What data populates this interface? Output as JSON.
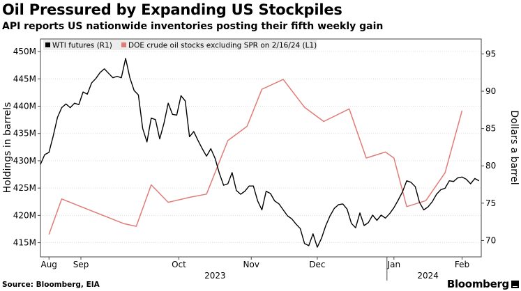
{
  "title": "Oil Pressured by Expanding US Stockpiles",
  "subtitle": "API reports US nationwide inventories posting their fifth weekly gain",
  "footer": {
    "source": "Source: Bloomberg, EIA",
    "brand": "Bloomberg"
  },
  "colors": {
    "wti": "#000000",
    "doe": "#e07c77",
    "grid": "#dcdcdc",
    "legend_bg": "#ececec",
    "axis": "#444444"
  },
  "chart_data": {
    "type": "line",
    "title": "Oil Pressured by Expanding US Stockpiles",
    "legend": [
      "WTI futures (R1)",
      "DOE crude oil stocks excluding SPR on 2/16/24 (L1)"
    ],
    "legend_position": "top-left",
    "x_domain": [
      0,
      207
    ],
    "xaxis": {
      "month_ticks": [
        {
          "label": "Aug",
          "x": 4
        },
        {
          "label": "Sep",
          "x": 19
        },
        {
          "label": "Oct",
          "x": 65
        },
        {
          "label": "Nov",
          "x": 99
        },
        {
          "label": "Dec",
          "x": 130
        },
        {
          "label": "Jan",
          "x": 166
        },
        {
          "label": "Feb",
          "x": 198
        }
      ],
      "year_labels": [
        {
          "label": "2023",
          "x": 82
        },
        {
          "label": "2024",
          "x": 182
        }
      ]
    },
    "left_axis": {
      "label": "Holdings in barrels",
      "ticks": [
        "415M",
        "420M",
        "425M",
        "430M",
        "435M",
        "440M",
        "445M",
        "450M"
      ],
      "tick_values": [
        415,
        420,
        425,
        430,
        435,
        440,
        445,
        450
      ],
      "range": [
        412.4,
        452.3
      ]
    },
    "right_axis": {
      "label": "Dollars a barrel",
      "ticks": [
        "70",
        "75",
        "80",
        "85",
        "90",
        "95"
      ],
      "tick_values": [
        70,
        75,
        80,
        85,
        90,
        95
      ],
      "range": [
        67.8,
        97.0
      ]
    },
    "series": [
      {
        "name": "WTI futures (R1)",
        "axis": "right",
        "x": [
          0,
          2,
          4,
          6,
          8,
          10,
          12,
          14,
          16,
          18,
          20,
          22,
          24,
          26,
          28,
          30,
          32,
          34,
          36,
          38,
          40,
          42,
          44,
          46,
          48,
          50,
          52,
          54,
          56,
          58,
          60,
          62,
          64,
          66,
          68,
          70,
          72,
          74,
          76,
          78,
          80,
          82,
          84,
          86,
          88,
          90,
          92,
          94,
          96,
          98,
          100,
          102,
          104,
          106,
          108,
          110,
          112,
          114,
          116,
          118,
          120,
          122,
          124,
          126,
          128,
          130,
          132,
          134,
          136,
          138,
          140,
          142,
          144,
          146,
          148,
          150,
          152,
          154,
          156,
          158,
          160,
          162,
          164,
          166,
          168,
          170,
          172,
          174,
          176,
          178,
          180,
          182,
          184,
          186,
          188,
          190,
          192,
          194,
          196,
          198,
          200,
          202,
          204,
          206
        ],
        "values": [
          80.2,
          81.5,
          81.8,
          84.0,
          86.5,
          87.8,
          88.3,
          87.8,
          88.4,
          88.2,
          89.9,
          89.6,
          91.1,
          91.7,
          92.5,
          93.0,
          92.4,
          91.8,
          92.0,
          91.8,
          94.4,
          91.8,
          90.1,
          89.5,
          85.0,
          83.2,
          86.4,
          86.2,
          83.6,
          85.7,
          88.4,
          86.9,
          86.8,
          89.4,
          88.7,
          83.9,
          84.6,
          83.4,
          82.3,
          81.3,
          82.3,
          81.0,
          79.0,
          77.4,
          77.6,
          79.1,
          76.7,
          76.2,
          76.6,
          77.3,
          77.3,
          75.3,
          74.1,
          76.6,
          76.3,
          75.3,
          74.9,
          74.1,
          73.3,
          72.9,
          72.2,
          71.6,
          69.6,
          69.3,
          70.9,
          69.1,
          70.3,
          72.0,
          73.3,
          74.3,
          74.8,
          74.9,
          74.2,
          72.3,
          71.7,
          73.7,
          72.0,
          72.4,
          73.4,
          72.7,
          73.4,
          73.0,
          73.6,
          74.4,
          75.4,
          76.5,
          78.0,
          77.8,
          77.2,
          75.1,
          74.1,
          74.5,
          75.2,
          76.2,
          76.8,
          77.0,
          78.0,
          77.9,
          78.4,
          78.5,
          78.2,
          77.6,
          78.3,
          78.0
        ]
      },
      {
        "name": "DOE crude oil stocks excluding SPR on 2/16/24 (L1)",
        "axis": "left",
        "x": [
          4,
          10,
          39,
          45,
          52,
          60,
          70,
          78,
          88,
          97,
          104,
          114,
          124,
          133,
          145,
          153,
          162,
          166,
          172,
          181,
          190,
          198
        ],
        "values": [
          416.5,
          423.0,
          418.5,
          418.0,
          425.6,
          422.4,
          423.3,
          423.9,
          433.7,
          436.3,
          443.1,
          444.9,
          439.8,
          437.2,
          439.5,
          430.5,
          431.6,
          430.5,
          421.6,
          422.7,
          427.8,
          439.2
        ]
      }
    ]
  }
}
